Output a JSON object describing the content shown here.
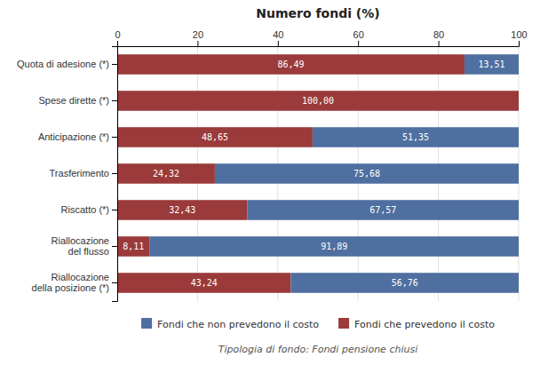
{
  "chart_data": {
    "type": "bar",
    "orientation": "horizontal",
    "stacked": true,
    "title": "Numero fondi (%)",
    "subtitle": "Tipologia di fondo: Fondi pensione chiusi",
    "categories": [
      "Quota di adesione (*)",
      "Spese dirette (*)",
      "Anticipazione (*)",
      "Trasferimento",
      "Riscatto (*)",
      "Riallocazione\ndel flusso",
      "Riallocazione\ndella posizione (*)"
    ],
    "series": [
      {
        "name": "Fondi che prevedono il costo",
        "color": "#9b3a3a",
        "values": [
          86.49,
          100.0,
          48.65,
          24.32,
          32.43,
          8.11,
          43.24
        ],
        "value_labels": [
          "86,49",
          "100,00",
          "48,65",
          "24,32",
          "32,43",
          "8,11",
          "43,24"
        ]
      },
      {
        "name": "Fondi che non prevedono il costo",
        "color": "#4f6fa0",
        "values": [
          13.51,
          0.0,
          51.35,
          75.68,
          67.57,
          91.89,
          56.76
        ],
        "value_labels": [
          "13,51",
          null,
          "51,35",
          "75,68",
          "67,57",
          "91,89",
          "56,76"
        ]
      }
    ],
    "xlim": [
      0,
      100
    ],
    "xticks": [
      0,
      20,
      40,
      60,
      80,
      100
    ],
    "grid": true,
    "data_labels": true,
    "legend": "bottom"
  }
}
